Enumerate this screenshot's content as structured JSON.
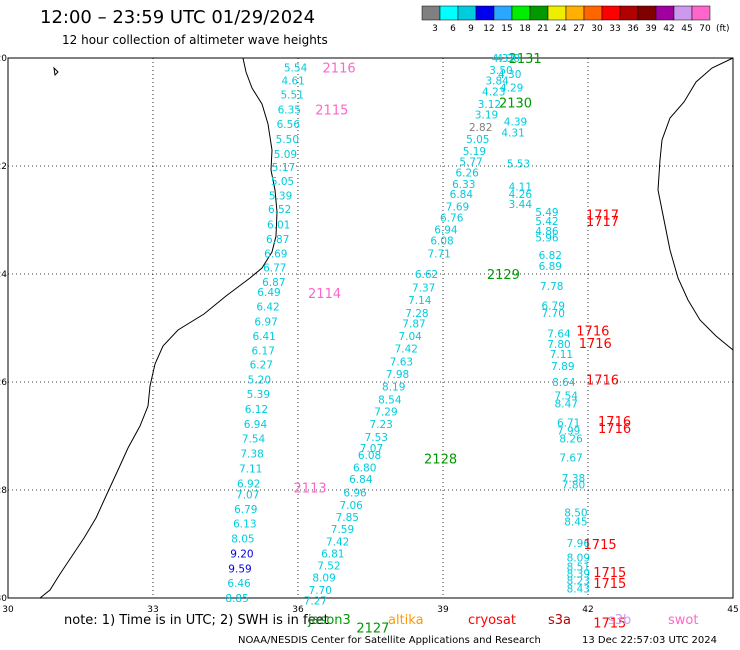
{
  "header": {
    "title": "12:00 – 23:59 UTC 01/29/2024",
    "subtitle": "12 hour collection of altimeter wave heights"
  },
  "legend": {
    "unit": "(ft)",
    "bins": [
      {
        "label": "3",
        "color": "#808080"
      },
      {
        "label": "6",
        "color": "#00ffff"
      },
      {
        "label": "9",
        "color": "#00ccdd"
      },
      {
        "label": "12",
        "color": "#0000ee"
      },
      {
        "label": "15",
        "color": "#2aa8ff"
      },
      {
        "label": "18",
        "color": "#00ee00"
      },
      {
        "label": "21",
        "color": "#009900"
      },
      {
        "label": "24",
        "color": "#eeee00"
      },
      {
        "label": "27",
        "color": "#ffb000"
      },
      {
        "label": "30",
        "color": "#ff6600"
      },
      {
        "label": "33",
        "color": "#ff0000"
      },
      {
        "label": "36",
        "color": "#b00000"
      },
      {
        "label": "39",
        "color": "#800000"
      },
      {
        "label": "42",
        "color": "#a000a0"
      },
      {
        "label": "45",
        "color": "#cc99ee"
      },
      {
        "label": "70",
        "color": "#ff66cc"
      }
    ]
  },
  "map": {
    "lon_ticks": [
      "30",
      "33",
      "36",
      "39",
      "42",
      "45"
    ],
    "lat_ticks": [
      "-20",
      "-22",
      "-24",
      "-26",
      "-28",
      "-30"
    ],
    "coastline_color": "#000000",
    "grid_color": "#000000"
  },
  "tracks": [
    {
      "pass": "2116",
      "color": "#00ccdd",
      "label_color": "#ff66cc",
      "label_pos": {
        "lon": 36.85,
        "lat": -20.18
      },
      "points": [
        {
          "lon": 35.95,
          "lat": -20.18,
          "v": "5.54"
        },
        {
          "lon": 35.9,
          "lat": -20.42,
          "v": "4.61"
        },
        {
          "lon": 35.88,
          "lat": -20.68,
          "v": "5.51"
        },
        {
          "lon": 35.82,
          "lat": -20.95,
          "v": "6.35"
        },
        {
          "lon": 35.8,
          "lat": -21.22,
          "v": "6.56"
        },
        {
          "lon": 35.78,
          "lat": -21.5,
          "v": "5.50"
        },
        {
          "lon": 35.74,
          "lat": -21.78,
          "v": "5.09"
        },
        {
          "lon": 35.7,
          "lat": -22.02,
          "v": "5.17"
        },
        {
          "lon": 35.68,
          "lat": -22.28,
          "v": "5.05"
        },
        {
          "lon": 35.64,
          "lat": -22.55,
          "v": "5.39"
        },
        {
          "lon": 35.62,
          "lat": -22.8,
          "v": "6.52"
        },
        {
          "lon": 35.6,
          "lat": -23.08,
          "v": "6.01"
        },
        {
          "lon": 35.58,
          "lat": -23.35,
          "v": "6.87"
        },
        {
          "lon": 35.54,
          "lat": -23.62,
          "v": "6.69"
        },
        {
          "lon": 35.52,
          "lat": -23.88,
          "v": "6.77"
        },
        {
          "lon": 35.5,
          "lat": -24.15,
          "v": "6.87"
        }
      ]
    },
    {
      "pass": "2115",
      "color": "#00ccdd",
      "label_color": "#ff66cc",
      "label_pos": {
        "lon": 36.7,
        "lat": -20.95
      },
      "points": []
    },
    {
      "pass": "2114",
      "color": "#00ccdd",
      "label_color": "#ff66cc",
      "label_pos": {
        "lon": 36.55,
        "lat": -24.35
      },
      "points": [
        {
          "lon": 35.4,
          "lat": -24.33,
          "v": "6.49"
        },
        {
          "lon": 35.38,
          "lat": -24.6,
          "v": "6.42"
        },
        {
          "lon": 35.34,
          "lat": -24.88,
          "v": "6.97"
        },
        {
          "lon": 35.3,
          "lat": -25.15,
          "v": "6.41"
        },
        {
          "lon": 35.28,
          "lat": -25.42,
          "v": "6.17"
        },
        {
          "lon": 35.24,
          "lat": -25.68,
          "v": "6.27"
        },
        {
          "lon": 35.2,
          "lat": -25.95,
          "v": "5.20"
        },
        {
          "lon": 35.18,
          "lat": -26.22,
          "v": "5.39"
        },
        {
          "lon": 35.14,
          "lat": -26.5,
          "v": "6.12"
        },
        {
          "lon": 35.12,
          "lat": -26.78,
          "v": "6.94"
        },
        {
          "lon": 35.08,
          "lat": -27.05,
          "v": "7.54"
        },
        {
          "lon": 35.05,
          "lat": -27.32,
          "v": "7.38"
        },
        {
          "lon": 35.02,
          "lat": -27.6,
          "v": "7.11"
        },
        {
          "lon": 34.98,
          "lat": -27.88,
          "v": "6.92"
        },
        {
          "lon": 34.96,
          "lat": -28.08,
          "v": "7.07"
        },
        {
          "lon": 34.92,
          "lat": -28.35,
          "v": "6.79"
        },
        {
          "lon": 34.9,
          "lat": -28.62,
          "v": "6.13"
        },
        {
          "lon": 34.86,
          "lat": -28.9,
          "v": "8.05"
        },
        {
          "lon": 34.84,
          "lat": -29.18,
          "v": "9.20"
        },
        {
          "lon": 34.8,
          "lat": -29.45,
          "v": "9.59"
        },
        {
          "lon": 34.78,
          "lat": -29.72,
          "v": "6.46"
        },
        {
          "lon": 34.74,
          "lat": -30.0,
          "v": "8.85"
        }
      ]
    },
    {
      "pass": "2113",
      "color": "#00ccdd",
      "label_color": "#ff66cc",
      "label_pos": {
        "lon": 36.25,
        "lat": -27.95
      },
      "points": [
        {
          "lon": 34.7,
          "lat": -30.28,
          "v": "8.63"
        }
      ]
    },
    {
      "pass": "2131",
      "color": "#00ccdd",
      "label_color": "#009900",
      "label_pos": {
        "lon": 40.7,
        "lat": -20.0
      },
      "points": [
        {
          "lon": 40.25,
          "lat": -20.0,
          "v": "4.32"
        },
        {
          "lon": 40.2,
          "lat": -20.22,
          "v": "3.50"
        },
        {
          "lon": 40.12,
          "lat": -20.42,
          "v": "3.84"
        },
        {
          "lon": 40.05,
          "lat": -20.62,
          "v": "4.23"
        },
        {
          "lon": 39.96,
          "lat": -20.85,
          "v": "3.12"
        },
        {
          "lon": 39.9,
          "lat": -21.05,
          "v": "3.19"
        },
        {
          "lon": 39.78,
          "lat": -21.28,
          "v": "2.82"
        },
        {
          "lon": 39.72,
          "lat": -21.5,
          "v": "5.05"
        },
        {
          "lon": 39.65,
          "lat": -21.72,
          "v": "5.19"
        },
        {
          "lon": 39.58,
          "lat": -21.92,
          "v": "5.77"
        },
        {
          "lon": 39.5,
          "lat": -22.12,
          "v": "6.26"
        },
        {
          "lon": 39.43,
          "lat": -22.33,
          "v": "6.33"
        },
        {
          "lon": 39.38,
          "lat": -22.52,
          "v": "6.84"
        },
        {
          "lon": 39.3,
          "lat": -22.75,
          "v": "7.69"
        },
        {
          "lon": 39.18,
          "lat": -22.95,
          "v": "6.76"
        },
        {
          "lon": 39.06,
          "lat": -23.18,
          "v": "6.94"
        },
        {
          "lon": 38.98,
          "lat": -23.38,
          "v": "6.08"
        },
        {
          "lon": 38.92,
          "lat": -23.62,
          "v": "7.71"
        }
      ]
    },
    {
      "pass": "2130",
      "color": "#00ccdd",
      "label_color": "#009900",
      "label_pos": {
        "lon": 40.5,
        "lat": -20.82
      },
      "points": [
        {
          "lon": 40.35,
          "lat": -20.0,
          "v": "4.30"
        },
        {
          "lon": 40.38,
          "lat": -20.3,
          "v": "4.30"
        },
        {
          "lon": 40.42,
          "lat": -20.55,
          "v": "4.29"
        },
        {
          "lon": 40.5,
          "lat": -21.18,
          "v": "4.39"
        },
        {
          "lon": 40.45,
          "lat": -21.38,
          "v": "4.31"
        },
        {
          "lon": 40.56,
          "lat": -21.95,
          "v": "5.53"
        },
        {
          "lon": 40.6,
          "lat": -22.38,
          "v": "4.11"
        },
        {
          "lon": 40.6,
          "lat": -22.52,
          "v": "4.26"
        },
        {
          "lon": 40.6,
          "lat": -22.7,
          "v": "3.44"
        }
      ]
    },
    {
      "pass": "2129",
      "color": "#00ccdd",
      "label_color": "#009900",
      "label_pos": {
        "lon": 40.25,
        "lat": -24.0
      },
      "points": [
        {
          "lon": 38.66,
          "lat": -24.0,
          "v": "6.62"
        },
        {
          "lon": 38.6,
          "lat": -24.25,
          "v": "7.37"
        },
        {
          "lon": 38.52,
          "lat": -24.48,
          "v": "7.14"
        },
        {
          "lon": 38.46,
          "lat": -24.72,
          "v": "7.28"
        },
        {
          "lon": 38.4,
          "lat": -24.92,
          "v": "7.87"
        },
        {
          "lon": 38.32,
          "lat": -25.15,
          "v": "7.04"
        },
        {
          "lon": 38.24,
          "lat": -25.38,
          "v": "7.42"
        },
        {
          "lon": 38.14,
          "lat": -25.62,
          "v": "7.63"
        },
        {
          "lon": 38.06,
          "lat": -25.85,
          "v": "7.98"
        },
        {
          "lon": 37.98,
          "lat": -26.08,
          "v": "8.19"
        },
        {
          "lon": 37.9,
          "lat": -26.32,
          "v": "8.54"
        },
        {
          "lon": 37.82,
          "lat": -26.55,
          "v": "7.29"
        },
        {
          "lon": 37.72,
          "lat": -26.78,
          "v": "7.23"
        },
        {
          "lon": 37.62,
          "lat": -27.02,
          "v": "7.53"
        },
        {
          "lon": 37.52,
          "lat": -27.22,
          "v": "7.07"
        },
        {
          "lon": 37.48,
          "lat": -27.35,
          "v": "6.08"
        },
        {
          "lon": 37.38,
          "lat": -27.58,
          "v": "6.80"
        },
        {
          "lon": 37.3,
          "lat": -27.8,
          "v": "6.84"
        },
        {
          "lon": 37.18,
          "lat": -28.05,
          "v": "6.96"
        },
        {
          "lon": 37.1,
          "lat": -28.28,
          "v": "7.06"
        },
        {
          "lon": 37.02,
          "lat": -28.5,
          "v": "7.85"
        },
        {
          "lon": 36.92,
          "lat": -28.72,
          "v": "7.59"
        },
        {
          "lon": 36.82,
          "lat": -28.95,
          "v": "7.42"
        },
        {
          "lon": 36.72,
          "lat": -29.18,
          "v": "6.81"
        },
        {
          "lon": 36.64,
          "lat": -29.4,
          "v": "7.52"
        },
        {
          "lon": 36.54,
          "lat": -29.62,
          "v": "8.09"
        },
        {
          "lon": 36.46,
          "lat": -29.85,
          "v": "7.70"
        },
        {
          "lon": 36.36,
          "lat": -30.05,
          "v": "7.27"
        },
        {
          "lon": 36.28,
          "lat": -30.28,
          "v": "7.97"
        },
        {
          "lon": 36.18,
          "lat": -30.5,
          "v": "7.21"
        }
      ]
    },
    {
      "pass": "2128",
      "color": "#00ccdd",
      "label_color": "#009900",
      "label_pos": {
        "lon": 38.95,
        "lat": -27.42
      },
      "points": []
    },
    {
      "pass": "2127",
      "color": "#00ccdd",
      "label_color": "#009900",
      "label_pos": {
        "lon": 37.55,
        "lat": -30.55
      },
      "points": [
        {
          "lon": 36.18,
          "lat": -30.52,
          "v": "9.41"
        },
        {
          "lon": 36.0,
          "lat": -30.78,
          "v": "8.22"
        },
        {
          "lon": 35.95,
          "lat": -31.0,
          "v": "8.74"
        },
        {
          "lon": 35.85,
          "lat": -31.22,
          "v": "8.06"
        }
      ]
    },
    {
      "pass": "1717",
      "color": "#00ccdd",
      "label_color": "#ff0000",
      "label_pos": {
        "lon": 42.3,
        "lat": -23.02
      },
      "points": [
        {
          "lon": 41.15,
          "lat": -22.85,
          "v": "5.49"
        },
        {
          "lon": 41.15,
          "lat": -23.02,
          "v": "5.42"
        },
        {
          "lon": 41.15,
          "lat": -23.2,
          "v": "4.86"
        },
        {
          "lon": 41.15,
          "lat": -23.32,
          "v": "5.96"
        },
        {
          "lon": 41.22,
          "lat": -23.65,
          "v": "6.82"
        },
        {
          "lon": 41.22,
          "lat": -23.85,
          "v": "6.89"
        },
        {
          "lon": 41.25,
          "lat": -24.22,
          "v": "7.78"
        },
        {
          "lon": 41.28,
          "lat": -24.58,
          "v": "6.79"
        },
        {
          "lon": 41.28,
          "lat": -24.72,
          "v": "7.70"
        }
      ]
    },
    {
      "pass": "1716",
      "color": "#00ccdd",
      "label_color": "#ff0000",
      "label_pos": {
        "lon": 42.1,
        "lat": -25.05
      },
      "points": [
        {
          "lon": 41.4,
          "lat": -25.1,
          "v": "7.64"
        },
        {
          "lon": 41.4,
          "lat": -25.3,
          "v": "7.80"
        },
        {
          "lon": 41.45,
          "lat": -25.48,
          "v": "7.11"
        },
        {
          "lon": 41.48,
          "lat": -25.7,
          "v": "7.89"
        },
        {
          "lon": 41.5,
          "lat": -26.0,
          "v": "8.64"
        },
        {
          "lon": 41.55,
          "lat": -26.25,
          "v": "7.54"
        },
        {
          "lon": 41.55,
          "lat": -26.4,
          "v": "8.47"
        },
        {
          "lon": 41.6,
          "lat": -26.75,
          "v": "6.71"
        },
        {
          "lon": 41.6,
          "lat": -26.9,
          "v": "7.99"
        },
        {
          "lon": 41.65,
          "lat": -27.05,
          "v": "8.26"
        },
        {
          "lon": 41.65,
          "lat": -27.4,
          "v": "7.67"
        },
        {
          "lon": 41.7,
          "lat": -27.78,
          "v": "7.38"
        },
        {
          "lon": 41.7,
          "lat": -27.9,
          "v": "7.80"
        }
      ]
    },
    {
      "pass": "1715",
      "color": "#00ccdd",
      "label_color": "#ff0000",
      "label_pos": {
        "lon": 42.25,
        "lat": -29.0
      },
      "points": [
        {
          "lon": 41.75,
          "lat": -28.42,
          "v": "8.50"
        },
        {
          "lon": 41.75,
          "lat": -28.58,
          "v": "8.45"
        },
        {
          "lon": 41.8,
          "lat": -28.98,
          "v": "7.96"
        },
        {
          "lon": 41.8,
          "lat": -29.25,
          "v": "8.09"
        },
        {
          "lon": 41.8,
          "lat": -29.42,
          "v": "8.51"
        },
        {
          "lon": 41.8,
          "lat": -29.55,
          "v": "8.39"
        },
        {
          "lon": 41.8,
          "lat": -29.68,
          "v": "8.23"
        },
        {
          "lon": 41.8,
          "lat": -29.82,
          "v": "8.43"
        },
        {
          "lon": 41.85,
          "lat": -30.45,
          "v": "7.59"
        },
        {
          "lon": 41.85,
          "lat": -30.55,
          "v": "7.85"
        }
      ]
    }
  ],
  "extra_labels": [
    {
      "text": "1717",
      "color": "#ff0000",
      "lon": 42.3,
      "lat": -22.9
    },
    {
      "text": "1716",
      "color": "#ff0000",
      "lon": 42.15,
      "lat": -25.28
    },
    {
      "text": "1716",
      "color": "#ff0000",
      "lon": 42.3,
      "lat": -25.95
    },
    {
      "text": "1716",
      "color": "#ff0000",
      "lon": 42.55,
      "lat": -26.72
    },
    {
      "text": "1716",
      "color": "#ff0000",
      "lon": 42.55,
      "lat": -26.85
    },
    {
      "text": "1715",
      "color": "#ff0000",
      "lon": 42.45,
      "lat": -29.52
    },
    {
      "text": "1715",
      "color": "#ff0000",
      "lon": 42.45,
      "lat": -29.72
    },
    {
      "text": "1715",
      "color": "#ff0000",
      "lon": 42.45,
      "lat": -30.45
    }
  ],
  "footer": {
    "note": "note:  1) Time is in UTC; 2) SWH is in feet",
    "satellites": [
      {
        "label": "jason3",
        "color": "#009900"
      },
      {
        "label": "altika",
        "color": "#ff9900"
      },
      {
        "label": "cryosat",
        "color": "#ff0000"
      },
      {
        "label": "s3a",
        "color": "#b00000"
      },
      {
        "label": "s3b",
        "color": "#cc99ee"
      },
      {
        "label": "swot",
        "color": "#ff66cc"
      }
    ],
    "credit": "NOAA/NESDIS Center for Satellite Applications and Research",
    "timestamp": "13 Dec 22:57:03 UTC 2024"
  }
}
